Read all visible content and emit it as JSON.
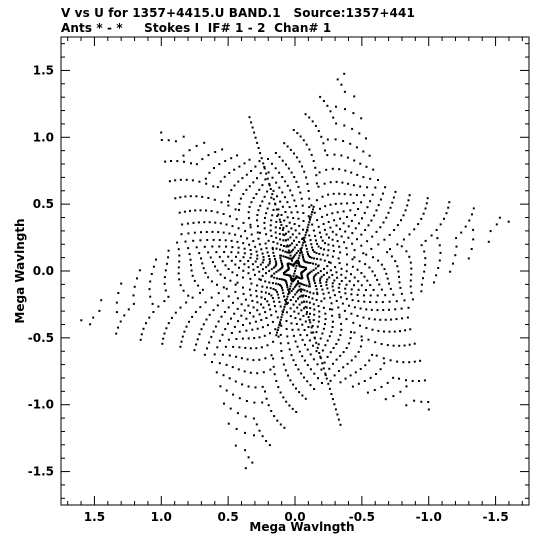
{
  "title_line1": "V vs U for 1357+4415.U BAND.1   Source:1357+441",
  "title_line2": "Ants * - *     Stokes I  IF# 1 - 2  Chan# 1",
  "chart_data": {
    "type": "scatter",
    "xlabel": "Mega Wavlngth",
    "ylabel": "Mega Wavlngth",
    "xlim": [
      1.75,
      -1.75
    ],
    "ylim": [
      -1.75,
      1.75
    ],
    "x_ticks": [
      1.5,
      1.0,
      0.5,
      0.0,
      -0.5,
      -1.0,
      -1.5
    ],
    "x_tick_labels": [
      "1.5",
      "1.0",
      "0.5",
      "0.0",
      "-0.5",
      "-1.0",
      "-1.5"
    ],
    "y_ticks": [
      1.5,
      1.0,
      0.5,
      0.0,
      -0.5,
      -1.0,
      -1.5
    ],
    "y_tick_labels": [
      "1.5",
      "1.0",
      "0.5",
      "0.0",
      "-0.5",
      "-1.0",
      "-1.5"
    ],
    "grid": false,
    "marker_color": "#000000",
    "arms": [
      {
        "angle_deg": 104,
        "length": 1.52
      },
      {
        "angle_deg": 167,
        "length": 1.64
      },
      {
        "angle_deg": 226,
        "length": 1.44
      },
      {
        "angle_deg": 284,
        "length": 1.52
      },
      {
        "angle_deg": 347,
        "length": 1.64
      },
      {
        "angle_deg": 46,
        "length": 1.44
      }
    ],
    "baseline_tracks": 18,
    "samples_per_track": 40
  }
}
